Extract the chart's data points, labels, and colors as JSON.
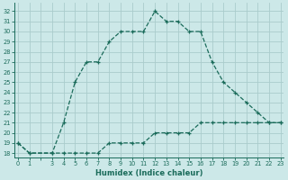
{
  "xlabel": "Humidex (Indice chaleur)",
  "bg_color": "#cce8e8",
  "grid_color": "#aacccc",
  "line_color": "#1a6b5a",
  "hours": [
    0,
    1,
    3,
    4,
    5,
    6,
    7,
    8,
    9,
    10,
    11,
    12,
    13,
    14,
    15,
    16,
    17,
    18,
    19,
    20,
    21,
    22,
    23
  ],
  "upper_curve": [
    19,
    18,
    18,
    21,
    25,
    27,
    27,
    29,
    30,
    30,
    30,
    32,
    31,
    31,
    30,
    30,
    27,
    25,
    24,
    23,
    22,
    21,
    21
  ],
  "lower_curve": [
    19,
    18,
    18,
    18,
    18,
    18,
    18,
    19,
    19,
    19,
    19,
    20,
    20,
    20,
    20,
    21,
    21,
    21,
    21,
    21,
    21,
    21,
    21
  ],
  "ylim": [
    17.6,
    32.8
  ],
  "xlim": [
    -0.3,
    23.3
  ],
  "yticks": [
    18,
    19,
    20,
    21,
    22,
    23,
    24,
    25,
    26,
    27,
    28,
    29,
    30,
    31,
    32
  ],
  "xtick_positions": [
    0,
    1,
    2,
    3,
    4,
    5,
    6,
    7,
    8,
    9,
    10,
    11,
    12,
    13,
    14,
    15,
    16,
    17,
    18,
    19,
    20,
    21,
    22,
    23
  ],
  "xtick_labels": [
    "0",
    "1",
    "",
    "3",
    "4",
    "5",
    "6",
    "7",
    "8",
    "9",
    "10",
    "11",
    "12",
    "13",
    "14",
    "15",
    "16",
    "17",
    "18",
    "19",
    "20",
    "21",
    "22",
    "23"
  ],
  "marker_hours": [
    0,
    1,
    3,
    4,
    5,
    6,
    7,
    8,
    9,
    10,
    11,
    12,
    13,
    14,
    15,
    16,
    17,
    18,
    19,
    20,
    21,
    22,
    23
  ],
  "label_fontsize": 5.5,
  "tick_fontsize": 4.8,
  "xlabel_fontsize": 6.0
}
